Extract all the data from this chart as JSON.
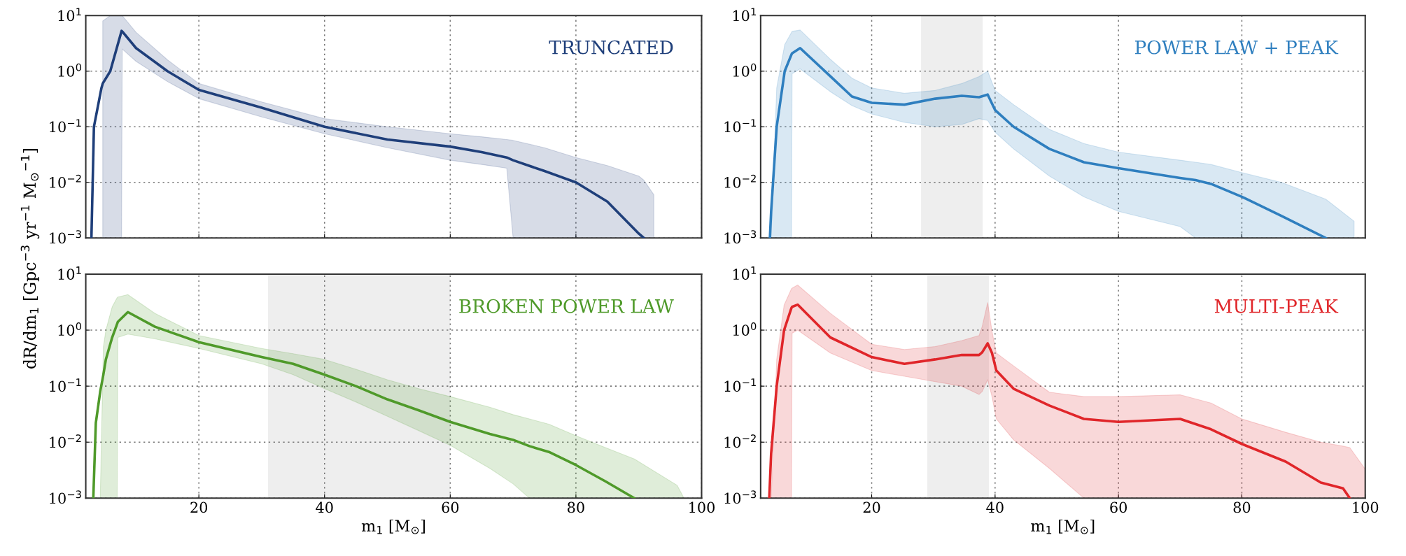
{
  "chart_data": [
    {
      "type": "line",
      "title": "TRUNCATED",
      "xlim": [
        2,
        100
      ],
      "ylim": [
        0.001,
        10
      ],
      "log": "y",
      "grid": true,
      "tick_labels": "y",
      "xticks": [
        20,
        40,
        60,
        80,
        100
      ],
      "yticks": [
        {
          "value": 0.001,
          "label": "10$^{−3}$"
        },
        {
          "value": 0.01,
          "label": "10$^{−2}$"
        },
        {
          "value": 0.1,
          "label": "10$^{−1}$"
        },
        {
          "value": 1,
          "label": "10$^{0}$"
        },
        {
          "value": 10,
          "label": "10$^{1}$"
        }
      ],
      "x": [
        2.9,
        3.3,
        4.5,
        4.7,
        5.9,
        7.7,
        7.8,
        10,
        15,
        20,
        30,
        40,
        50,
        60,
        65,
        69,
        70,
        75,
        80,
        85,
        90,
        90.8,
        92.4
      ],
      "series": [
        {
          "color": "#1f3f7a",
          "values": [
            0.001,
            0.1,
            0.5,
            0.6,
            1.0,
            5.3,
            5.2,
            2.6,
            1.0,
            0.46,
            0.22,
            0.1,
            0.059,
            0.044,
            0.035,
            0.028,
            0.025,
            0.016,
            0.01,
            0.0045,
            0.0012,
            0.001,
            null
          ],
          "upper": [
            null,
            null,
            null,
            8,
            10,
            10,
            10,
            5,
            1.6,
            0.6,
            0.28,
            0.14,
            0.1,
            0.075,
            0.066,
            0.059,
            0.057,
            0.042,
            0.028,
            0.02,
            0.013,
            0.011,
            0.006
          ],
          "lower": [
            null,
            null,
            null,
            0.001,
            0.001,
            0.001,
            2.5,
            1.5,
            0.65,
            0.32,
            0.15,
            0.075,
            0.042,
            0.025,
            0.021,
            0.018,
            0.001,
            0.001,
            0.001,
            0.001,
            0.001,
            0.001,
            0.001
          ]
        }
      ]
    },
    {
      "type": "line",
      "title": "POWER LAW + PEAK",
      "xlim": [
        2,
        100
      ],
      "ylim": [
        0.001,
        10
      ],
      "log": "y",
      "grid": true,
      "tick_labels": "y",
      "xticks": [
        20,
        40,
        60,
        80,
        100
      ],
      "yticks": [
        {
          "value": 0.001,
          "label": "10$^{−3}$"
        },
        {
          "value": 0.01,
          "label": "10$^{−2}$"
        },
        {
          "value": 0.1,
          "label": "10$^{−1}$"
        },
        {
          "value": 1,
          "label": "10$^{0}$"
        },
        {
          "value": 10,
          "label": "10$^{1}$"
        }
      ],
      "bands": [
        {
          "axis": "x",
          "from": 28,
          "to": 38,
          "color": "#eeeeee"
        }
      ],
      "x": [
        3.5,
        3.7,
        4.6,
        5.9,
        7.0,
        7.1,
        8.4,
        13.4,
        16.8,
        20,
        25.3,
        30.3,
        34.6,
        37.4,
        38.8,
        40,
        43,
        48.8,
        54.4,
        60,
        70,
        72.5,
        75,
        80,
        86.4,
        93.6,
        98.2
      ],
      "series": [
        {
          "color": "#2f7fbf",
          "values": [
            0.001,
            0.003,
            0.1,
            1.0,
            2.0,
            2.1,
            2.6,
            0.79,
            0.35,
            0.27,
            0.25,
            0.32,
            0.36,
            0.34,
            0.38,
            0.2,
            0.1,
            0.04,
            0.023,
            0.018,
            0.012,
            0.011,
            0.0094,
            0.0055,
            0.0025,
            0.001,
            null
          ],
          "upper": [
            null,
            0.001,
            0.5,
            3,
            5,
            5.2,
            5.5,
            1.6,
            0.75,
            0.5,
            0.4,
            0.45,
            0.6,
            0.8,
            1.0,
            0.45,
            0.25,
            0.09,
            0.05,
            0.035,
            0.025,
            0.023,
            0.021,
            0.015,
            0.01,
            0.005,
            0.002
          ],
          "lower": [
            null,
            0.001,
            0.001,
            0.001,
            0.001,
            0.9,
            1.1,
            0.42,
            0.24,
            0.17,
            0.12,
            0.1,
            0.11,
            0.14,
            0.13,
            0.08,
            0.04,
            0.013,
            0.0055,
            0.003,
            0.0016,
            0.001,
            0.001,
            0.001,
            0.001,
            0.001,
            0.001
          ]
        }
      ]
    },
    {
      "type": "line",
      "title": "BROKEN POWER LAW",
      "xlim": [
        2,
        100
      ],
      "ylim": [
        0.001,
        10
      ],
      "log": "y",
      "grid": true,
      "xlabel": "m$_{1}$ [M$_{⊙}$]",
      "ylabel": "dR/dm$_{1}$ [Gpc$^{−3}$ yr$^{−1}$ M$_{⊙}$$^{−1}$]",
      "xticks": [
        20,
        40,
        60,
        80,
        100
      ],
      "yticks": [
        {
          "value": 0.001,
          "label": "10$^{−3}$"
        },
        {
          "value": 0.01,
          "label": "10$^{−2}$"
        },
        {
          "value": 0.1,
          "label": "10$^{−1}$"
        },
        {
          "value": 1,
          "label": "10$^{0}$"
        },
        {
          "value": 10,
          "label": "10$^{1}$"
        }
      ],
      "bands": [
        {
          "axis": "x",
          "from": 31,
          "to": 60,
          "color": "#eeeeee"
        }
      ],
      "x": [
        3.2,
        3.6,
        4.3,
        4.8,
        5.2,
        6.2,
        7.0,
        7.1,
        8.7,
        13,
        20,
        30,
        35,
        40,
        45,
        50,
        55,
        60,
        66.3,
        70,
        72.6,
        75.7,
        80,
        84.7,
        89.3,
        96.1,
        97.2
      ],
      "series": [
        {
          "color": "#4f9a2a",
          "values": [
            0.001,
            0.022,
            0.08,
            0.16,
            0.3,
            0.74,
            1.3,
            1.4,
            2.1,
            1.15,
            0.61,
            0.33,
            0.25,
            0.16,
            0.1,
            0.058,
            0.037,
            0.023,
            0.014,
            0.011,
            0.0085,
            0.0067,
            0.0039,
            0.002,
            0.001,
            null,
            null
          ],
          "upper": [
            null,
            null,
            0.001,
            0.5,
            1,
            2.6,
            3.8,
            3.9,
            4.3,
            2,
            0.8,
            0.47,
            0.38,
            0.3,
            0.2,
            0.13,
            0.09,
            0.065,
            0.042,
            0.031,
            0.026,
            0.021,
            0.013,
            0.008,
            0.005,
            0.0017,
            0.001
          ],
          "lower": [
            null,
            null,
            0.001,
            0.001,
            0.001,
            0.001,
            0.001,
            0.74,
            0.85,
            0.7,
            0.47,
            0.25,
            0.16,
            0.09,
            0.052,
            0.029,
            0.016,
            0.0088,
            0.0034,
            0.0018,
            0.001,
            0.001,
            0.001,
            0.001,
            0.001,
            0.001,
            0.001
          ]
        }
      ]
    },
    {
      "type": "line",
      "title": "MULTI-PEAK",
      "xlim": [
        2,
        100
      ],
      "ylim": [
        0.001,
        10
      ],
      "log": "y",
      "grid": true,
      "xlabel": "m$_{1}$ [M$_{⊙}$]",
      "xticks": [
        20,
        40,
        60,
        80,
        100
      ],
      "yticks": [
        {
          "value": 0.001,
          "label": "10$^{−3}$"
        },
        {
          "value": 0.01,
          "label": "10$^{−2}$"
        },
        {
          "value": 0.1,
          "label": "10$^{−1}$"
        },
        {
          "value": 1,
          "label": "10$^{0}$"
        },
        {
          "value": 10,
          "label": "10$^{1}$"
        }
      ],
      "bands": [
        {
          "axis": "x",
          "from": 29,
          "to": 39,
          "color": "#eeeeee"
        }
      ],
      "x": [
        3.4,
        3.7,
        4.6,
        5.8,
        7.0,
        7.1,
        8.0,
        13.3,
        20,
        25.3,
        30.3,
        34.6,
        37.4,
        37.9,
        38.8,
        39.5,
        40.2,
        43,
        48.8,
        54.4,
        60,
        70,
        75,
        80,
        87.1,
        92.8,
        96.4,
        97.5,
        100
      ],
      "series": [
        {
          "color": "#e0262a",
          "values": [
            0.001,
            0.0063,
            0.1,
            1.0,
            2.5,
            2.6,
            2.85,
            0.74,
            0.33,
            0.25,
            0.3,
            0.36,
            0.36,
            0.4,
            0.58,
            0.39,
            0.19,
            0.09,
            0.045,
            0.026,
            0.023,
            0.026,
            0.017,
            0.0093,
            0.0045,
            0.0019,
            0.0015,
            0.001,
            null
          ],
          "upper": [
            null,
            0.001,
            0.3,
            2.8,
            5.5,
            5.6,
            6.4,
            2,
            0.56,
            0.45,
            0.51,
            0.65,
            0.8,
            1.15,
            3.1,
            0.96,
            0.39,
            0.23,
            0.078,
            0.065,
            0.065,
            0.07,
            0.05,
            0.026,
            0.015,
            0.01,
            0.0085,
            0.008,
            0.0033
          ],
          "lower": [
            null,
            0.001,
            0.001,
            0.001,
            0.001,
            0.88,
            1.0,
            0.39,
            0.19,
            0.15,
            0.12,
            0.1,
            0.071,
            0.08,
            0.13,
            0.065,
            0.026,
            0.011,
            0.0034,
            0.001,
            0.001,
            0.001,
            0.001,
            0.001,
            0.001,
            0.001,
            0.001,
            0.001,
            0.001
          ]
        }
      ]
    }
  ]
}
